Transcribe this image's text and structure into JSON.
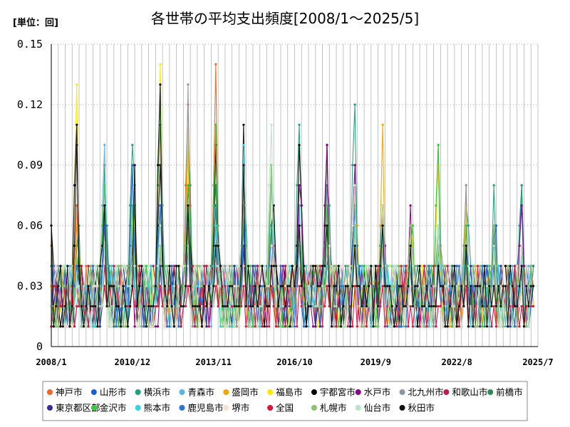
{
  "chart_data": {
    "type": "line",
    "title": "各世帯の平均支出頻度[2008/1～2025/5]",
    "unit_label": "[単位：回]",
    "ylim": [
      0,
      0.15
    ],
    "yticks": [
      "0",
      "0.03",
      "0.06",
      "0.09",
      "0.12",
      "0.15"
    ],
    "ytick_values": [
      0,
      0.03,
      0.06,
      0.09,
      0.12,
      0.15
    ],
    "xlim": [
      "2008-01",
      "2025-07"
    ],
    "xticks": [
      "2008/1",
      "2010/12",
      "2013/11",
      "2016/10",
      "2019/9",
      "2022/8",
      "2025/7"
    ],
    "xtick_values": [
      "2008-01",
      "2010-12",
      "2013-11",
      "2016-10",
      "2019-09",
      "2022-08",
      "2025-07"
    ],
    "grid": "vertical",
    "legend_position": "bottom",
    "series": [
      {
        "name": "神戸市",
        "color": "#f26522",
        "peaks": [
          0.07,
          0.06,
          0.05,
          0.04,
          0.12,
          0.14,
          0.07,
          0.04,
          0.06,
          0.05,
          0.08,
          0.07,
          0.03,
          0.04,
          0.08,
          0.04,
          0.03,
          0.04
        ]
      },
      {
        "name": "山形市",
        "color": "#1a5fd0",
        "peaks": [
          0.03,
          0.06,
          0.09,
          0.07,
          0.06,
          0.07,
          0.06,
          0.05,
          0.07,
          0.04,
          0.05,
          0.06,
          0.04,
          0.05,
          0.06,
          0.05,
          0.08,
          0.07
        ]
      },
      {
        "name": "横浜市",
        "color": "#1ea07a",
        "peaks": [
          0.05,
          0.09,
          0.1,
          0.12,
          0.1,
          0.11,
          0.07,
          0.09,
          0.11,
          0.08,
          0.12,
          0.07,
          0.06,
          0.1,
          0.07,
          0.08,
          0.08,
          0.03
        ]
      },
      {
        "name": "青森市",
        "color": "#5ab4e6",
        "peaks": [
          0.03,
          0.1,
          0.06,
          0.07,
          0.05,
          0.06,
          0.05,
          0.06,
          0.07,
          0.05,
          0.06,
          0.05,
          0.03,
          0.06,
          0.04,
          0.05,
          0.05,
          0.02
        ]
      },
      {
        "name": "盛岡市",
        "color": "#f5a300",
        "peaks": [
          0.06,
          0.07,
          0.05,
          0.05,
          0.1,
          0.06,
          0.09,
          0.05,
          0.05,
          0.04,
          0.06,
          0.11,
          0.06,
          0.05,
          0.07,
          0.06,
          0.04,
          0.06
        ]
      },
      {
        "name": "福島市",
        "color": "#ffe800",
        "peaks": [
          0.13,
          0.04,
          0.03,
          0.14,
          0.11,
          0.05,
          0.04,
          0.05,
          0.04,
          0.03,
          0.03,
          0.04,
          0.06,
          0.09,
          0.07,
          0.04,
          0.04,
          0.06
        ]
      },
      {
        "name": "宇都宮市",
        "color": "#000000",
        "peaks": [
          0.11,
          0.07,
          0.05,
          0.09,
          0.08,
          0.1,
          0.11,
          0.06,
          0.1,
          0.1,
          0.07,
          0.06,
          0.05,
          0.05,
          0.04,
          0.05,
          0.04,
          0.02
        ]
      },
      {
        "name": "水戸市",
        "color": "#8b008b",
        "peaks": [
          0.02,
          0.05,
          0.04,
          0.03,
          0.06,
          0.04,
          0.07,
          0.05,
          0.08,
          0.1,
          0.09,
          0.06,
          0.07,
          0.05,
          0.05,
          0.05,
          0.07,
          0.07
        ]
      },
      {
        "name": "北九州市",
        "color": "#8e97a0",
        "peaks": [
          0.02,
          0.04,
          0.05,
          0.04,
          0.13,
          0.05,
          0.08,
          0.06,
          0.05,
          0.06,
          0.05,
          0.05,
          0.04,
          0.04,
          0.08,
          0.04,
          0.03,
          0.02
        ]
      },
      {
        "name": "和歌山市",
        "color": "#c2185b",
        "peaks": [
          0.03,
          0.04,
          0.05,
          0.04,
          0.04,
          0.05,
          0.04,
          0.05,
          0.04,
          0.04,
          0.08,
          0.04,
          0.03,
          0.04,
          0.05,
          0.03,
          0.03,
          0.02
        ]
      },
      {
        "name": "前橋市",
        "color": "#2e8b57",
        "peaks": [
          0.03,
          0.07,
          0.05,
          0.11,
          0.07,
          0.08,
          0.07,
          0.09,
          0.06,
          0.07,
          0.05,
          0.07,
          0.04,
          0.06,
          0.05,
          0.06,
          0.03,
          0.02
        ]
      },
      {
        "name": "東京都区部",
        "color": "#3030a0",
        "peaks": [
          0.02,
          0.03,
          0.04,
          0.04,
          0.05,
          0.04,
          0.05,
          0.04,
          0.04,
          0.05,
          0.05,
          0.04,
          0.04,
          0.04,
          0.04,
          0.04,
          0.04,
          0.03
        ]
      },
      {
        "name": "金沢市",
        "color": "#3cc93c",
        "peaks": [
          0.04,
          0.08,
          0.07,
          0.05,
          0.08,
          0.11,
          0.07,
          0.09,
          0.06,
          0.07,
          0.07,
          0.06,
          0.05,
          0.1,
          0.06,
          0.05,
          0.05,
          0.03
        ]
      },
      {
        "name": "熊本市",
        "color": "#36d3e6",
        "peaks": [
          0.02,
          0.05,
          0.06,
          0.07,
          0.05,
          0.06,
          0.1,
          0.05,
          0.06,
          0.04,
          0.08,
          0.06,
          0.04,
          0.05,
          0.05,
          0.05,
          0.04,
          0.02
        ]
      },
      {
        "name": "鹿児島市",
        "color": "#2a72e0",
        "peaks": [
          0.04,
          0.06,
          0.09,
          0.07,
          0.05,
          0.05,
          0.06,
          0.06,
          0.06,
          0.05,
          0.07,
          0.06,
          0.05,
          0.04,
          0.05,
          0.06,
          0.05,
          0.03
        ]
      },
      {
        "name": "堺市",
        "color": "#f8e0cc",
        "peaks": [
          0.02,
          0.03,
          0.04,
          0.03,
          0.04,
          0.03,
          0.04,
          0.05,
          0.04,
          0.03,
          0.08,
          0.04,
          0.03,
          0.03,
          0.04,
          0.03,
          0.03,
          0.02
        ]
      },
      {
        "name": "全国",
        "color": "#e0103a",
        "peaks": [
          0.02,
          0.03,
          0.03,
          0.03,
          0.03,
          0.03,
          0.03,
          0.03,
          0.03,
          0.03,
          0.03,
          0.03,
          0.02,
          0.02,
          0.03,
          0.02,
          0.02,
          0.02
        ]
      },
      {
        "name": "札幌市",
        "color": "#8dc26e",
        "peaks": [
          0.03,
          0.05,
          0.06,
          0.05,
          0.06,
          0.05,
          0.07,
          0.09,
          0.06,
          0.05,
          0.06,
          0.05,
          0.06,
          0.05,
          0.04,
          0.06,
          0.05,
          0.03
        ]
      },
      {
        "name": "仙台市",
        "color": "#b8e6c8",
        "peaks": [
          0.03,
          0.05,
          0.04,
          0.06,
          0.05,
          0.04,
          0.09,
          0.11,
          0.06,
          0.05,
          0.05,
          0.07,
          0.05,
          0.06,
          0.04,
          0.05,
          0.05,
          0.02
        ]
      },
      {
        "name": "秋田市",
        "color": "#111111",
        "peaks": [
          0.1,
          0.07,
          0.03,
          0.13,
          0.07,
          0.05,
          0.09,
          0.04,
          0.06,
          0.06,
          0.05,
          0.06,
          0.05,
          0.04,
          0.05,
          0.03,
          0.04,
          0.02
        ]
      }
    ]
  }
}
